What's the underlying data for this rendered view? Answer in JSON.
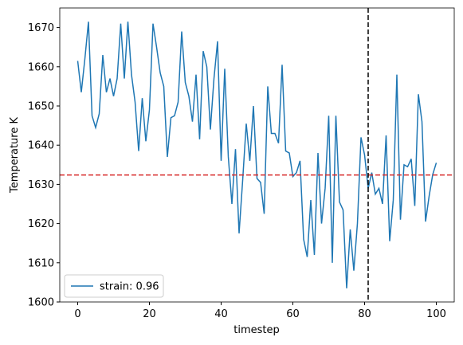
{
  "chart_data": {
    "type": "line",
    "xlabel": "timestep",
    "ylabel": "Temperature K",
    "x": [
      0,
      1,
      2,
      3,
      4,
      5,
      6,
      7,
      8,
      9,
      10,
      11,
      12,
      13,
      14,
      15,
      16,
      17,
      18,
      19,
      20,
      21,
      22,
      23,
      24,
      25,
      26,
      27,
      28,
      29,
      30,
      31,
      32,
      33,
      34,
      35,
      36,
      37,
      38,
      39,
      40,
      41,
      42,
      43,
      44,
      45,
      46,
      47,
      48,
      49,
      50,
      51,
      52,
      53,
      54,
      55,
      56,
      57,
      58,
      59,
      60,
      61,
      62,
      63,
      64,
      65,
      66,
      67,
      68,
      69,
      70,
      71,
      72,
      73,
      74,
      75,
      76,
      77,
      78,
      79,
      80,
      81,
      82,
      83,
      84,
      85,
      86,
      87,
      88,
      89,
      90,
      91,
      92,
      93,
      94,
      95,
      96,
      97,
      98,
      99,
      100
    ],
    "series": [
      {
        "name": "strain: 0.96",
        "color": "#1f77b4",
        "values": [
          1661.5,
          1653.5,
          1662,
          1671.5,
          1647.5,
          1644.5,
          1648,
          1663,
          1653.5,
          1657,
          1652.5,
          1657,
          1671,
          1657,
          1671.5,
          1658,
          1651,
          1638.5,
          1652,
          1641,
          1649,
          1671,
          1665,
          1658.5,
          1655,
          1637,
          1647,
          1647.5,
          1651,
          1669,
          1656,
          1652.5,
          1646,
          1658,
          1641.5,
          1664,
          1660,
          1644,
          1657,
          1666.5,
          1636,
          1659.5,
          1637,
          1625,
          1639,
          1617.5,
          1631,
          1645.5,
          1636,
          1650,
          1631.5,
          1630.5,
          1622.5,
          1655,
          1643,
          1643,
          1640.5,
          1660.5,
          1638.5,
          1638,
          1632,
          1633,
          1636,
          1616,
          1611.5,
          1626,
          1612,
          1638,
          1620,
          1629,
          1647.5,
          1610,
          1647.5,
          1625.5,
          1623.5,
          1603.5,
          1618.5,
          1608,
          1620,
          1642,
          1637.5,
          1629,
          1633,
          1627.5,
          1629,
          1625,
          1642.5,
          1615.5,
          1626,
          1658,
          1621,
          1635,
          1634.5,
          1636.5,
          1624.5,
          1653,
          1646,
          1620.5,
          1627,
          1632.5,
          1635.5
        ]
      }
    ],
    "hline": {
      "value": 1632.4,
      "color": "#d62728"
    },
    "vline": {
      "value": 81,
      "color": "#000000"
    },
    "xlim": [
      -5,
      105
    ],
    "ylim": [
      1600,
      1675
    ],
    "xticks": [
      0,
      20,
      40,
      60,
      80,
      100
    ],
    "yticks": [
      1600,
      1610,
      1620,
      1630,
      1640,
      1650,
      1660,
      1670
    ],
    "legend": "lower left"
  }
}
